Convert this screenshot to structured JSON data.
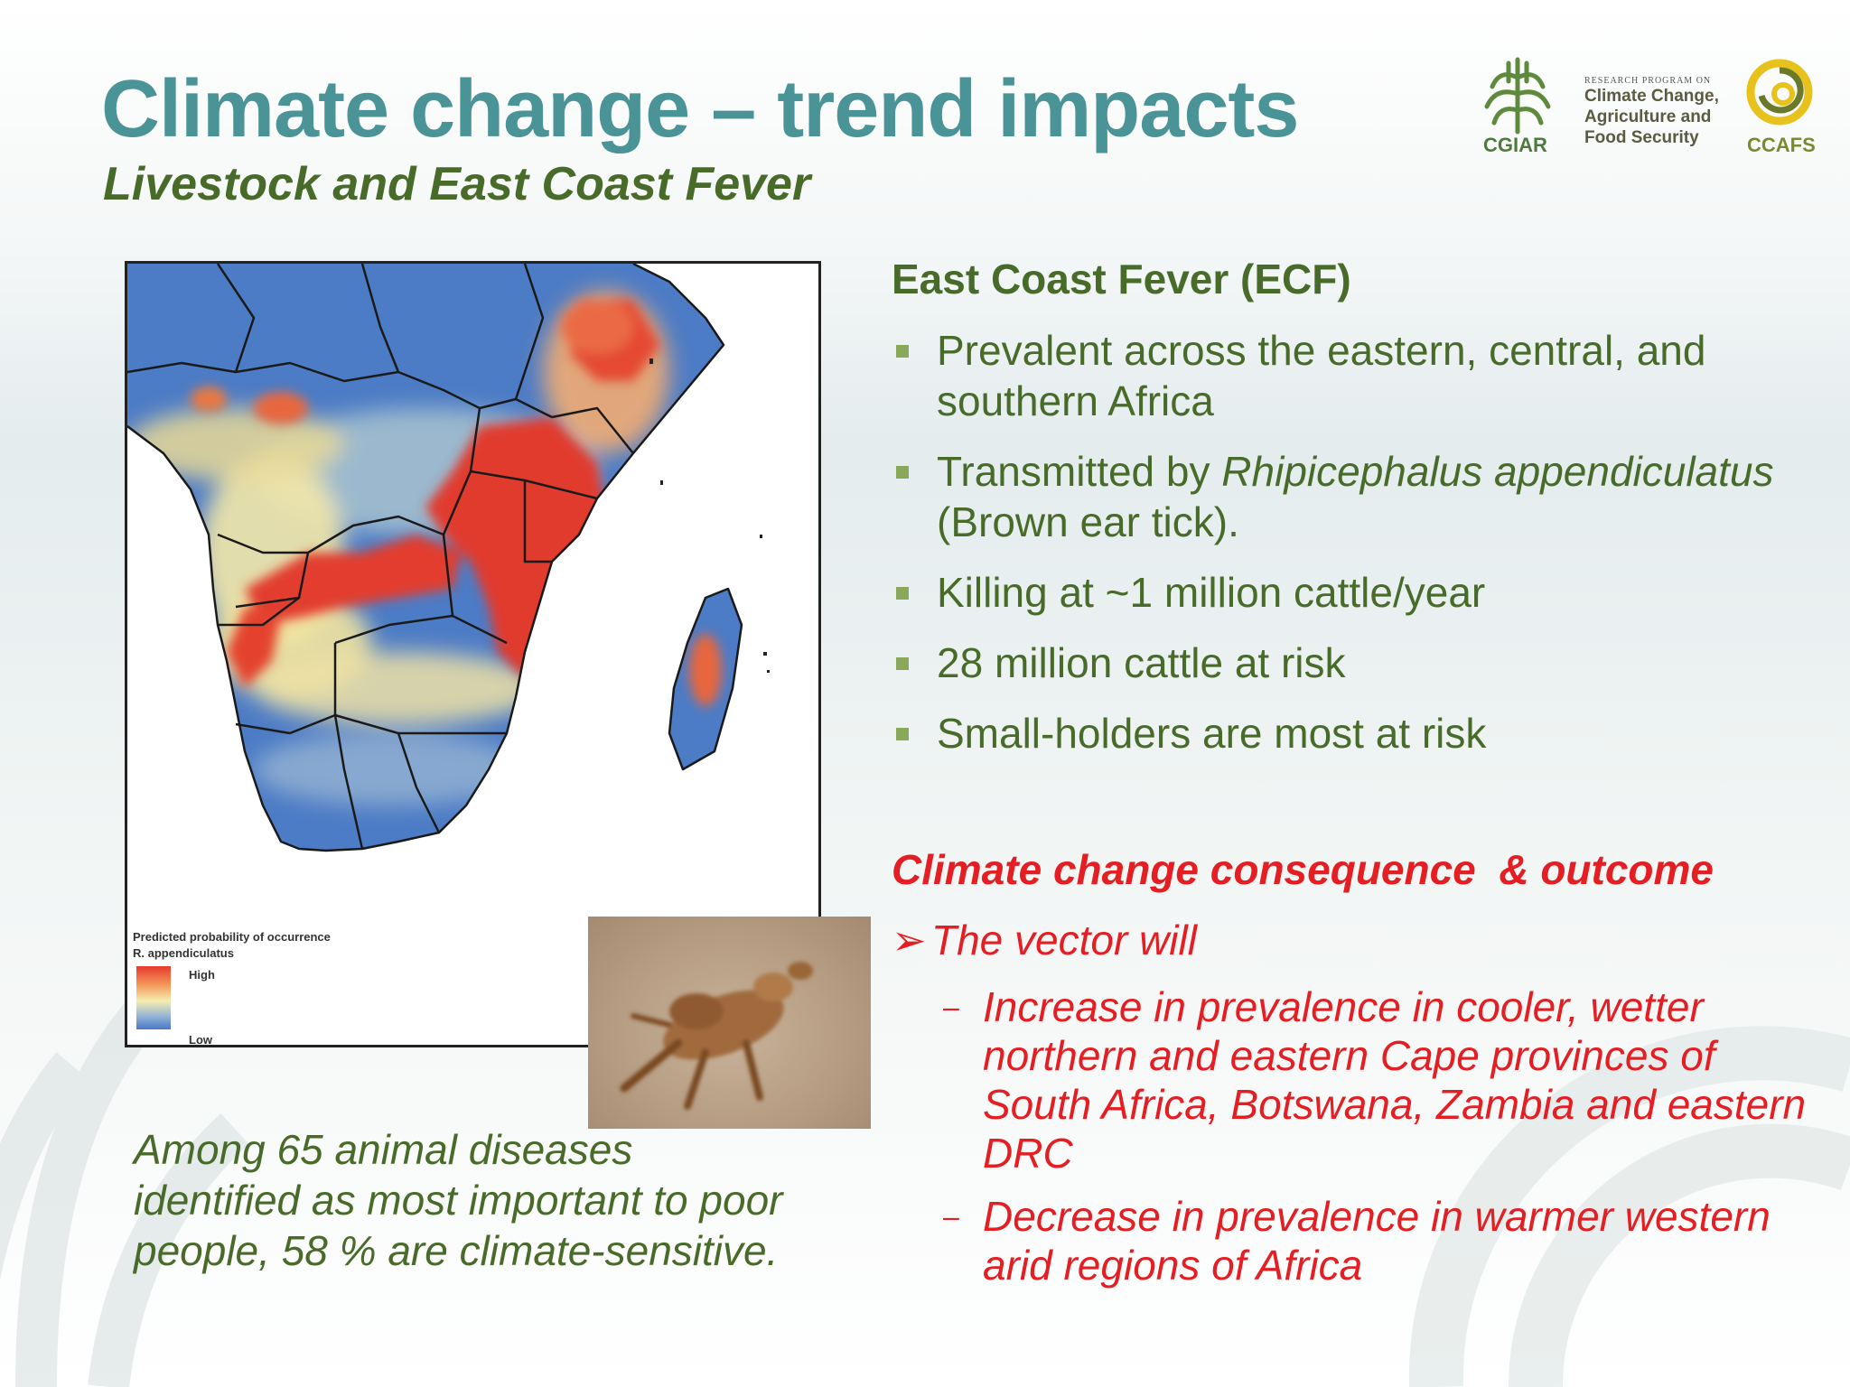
{
  "slide": {
    "title": "Climate change – trend impacts",
    "subtitle": "Livestock and East Coast Fever"
  },
  "logos": {
    "cgiar": "CGIAR",
    "program_small": "Research Program on",
    "program_lines": [
      "Climate Change,",
      "Agriculture and",
      "Food Security"
    ],
    "ccafs": "CCAFS"
  },
  "map": {
    "legend_title": "Predicted probability of occurrence",
    "legend_species": "R. appendiculatus",
    "legend_high": "High",
    "legend_low": "Low",
    "colors": {
      "high": "#e8382c",
      "mid": "#f5eeb0",
      "low": "#4a78c6"
    }
  },
  "photo": {
    "icon": "dead-calf-photo"
  },
  "caption": "Among 65 animal diseases identified as most important to poor people, 58 % are climate-sensitive.",
  "ecf": {
    "heading": "East Coast Fever (ECF)",
    "bullets": [
      {
        "text": "Prevalent across the eastern, central, and southern Africa"
      },
      {
        "pre": "Transmitted by ",
        "italic": "Rhipicephalus appendiculatus",
        "post": " (Brown ear tick)."
      },
      {
        "text": "Killing at ~1 million cattle/year"
      },
      {
        "text": "28 million cattle at risk"
      },
      {
        "text": "Small-holders are most at risk"
      }
    ]
  },
  "consequence": {
    "heading": "Climate change consequence  & outcome",
    "arrow_icon": "➢",
    "lead": "The vector will",
    "dash_icon": "–",
    "items": [
      "Increase in prevalence in cooler, wetter northern and eastern Cape provinces of South Africa, Botswana, Zambia and eastern DRC",
      "Decrease in prevalence in warmer western arid regions of Africa"
    ]
  },
  "colors": {
    "title": "#4a9396",
    "green_text": "#496b2a",
    "bullet_marker": "#8aa85a",
    "red_text": "#e41e22"
  }
}
